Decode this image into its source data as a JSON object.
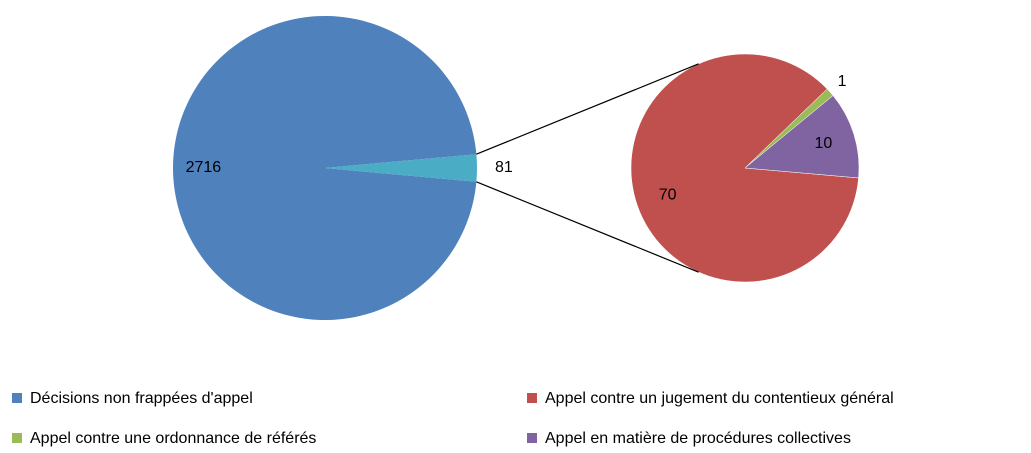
{
  "chart_data": {
    "type": "pie-of-pie",
    "main": {
      "categories": [
        "Décisions non frappées d'appel",
        null
      ],
      "values": [
        2716,
        81
      ],
      "colors": [
        "#4f81bd",
        "#4bacc6"
      ]
    },
    "secondary": {
      "categories": [
        "Appel contre un jugement du contentieux général",
        "Appel contre une ordonnance de référés",
        "Appel en matière de procédures collectives"
      ],
      "values": [
        70,
        1,
        10
      ],
      "colors": [
        "#c0504d",
        "#9bbb59",
        "#8064a2"
      ]
    }
  }
}
